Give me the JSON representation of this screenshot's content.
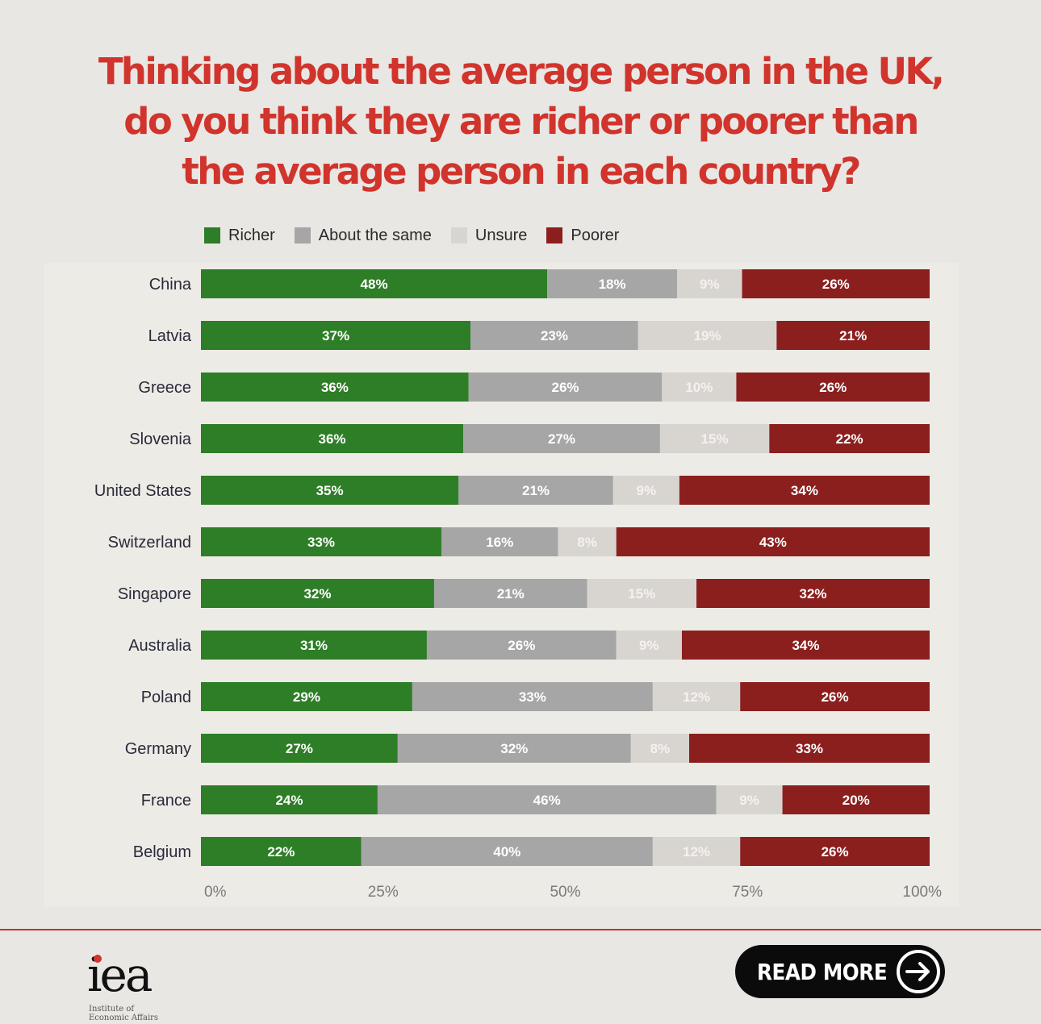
{
  "title_lines": [
    "Thinking about the average person in the UK,",
    "do you think they are richer or poorer than",
    "the average person in each country?"
  ],
  "colors": {
    "richer": "#2e7d27",
    "same": "#a6a6a6",
    "unsure": "#d8d5d1",
    "poorer": "#8b1f1e",
    "title": "#d0342c"
  },
  "chart_data": {
    "type": "bar",
    "orientation": "horizontal",
    "stacked": true,
    "normalized": true,
    "categories": [
      "China",
      "Latvia",
      "Greece",
      "Slovenia",
      "United States",
      "Switzerland",
      "Singapore",
      "Australia",
      "Poland",
      "Germany",
      "France",
      "Belgium"
    ],
    "series": [
      {
        "name": "Richer",
        "color": "#2e7d27",
        "values": [
          48,
          37,
          36,
          36,
          35,
          33,
          32,
          31,
          29,
          27,
          24,
          22
        ]
      },
      {
        "name": "About the same",
        "color": "#a6a6a6",
        "values": [
          18,
          23,
          26,
          27,
          21,
          16,
          21,
          26,
          33,
          32,
          46,
          40
        ]
      },
      {
        "name": "Unsure",
        "color": "#d8d5d1",
        "values": [
          9,
          19,
          10,
          15,
          9,
          8,
          15,
          9,
          12,
          8,
          9,
          12
        ]
      },
      {
        "name": "Poorer",
        "color": "#8b1f1e",
        "values": [
          26,
          21,
          26,
          22,
          34,
          43,
          32,
          34,
          26,
          33,
          20,
          26
        ]
      }
    ],
    "x_ticks": [
      "0%",
      "25%",
      "50%",
      "75%",
      "100%"
    ],
    "xlim": [
      0,
      100
    ],
    "legend_position": "top",
    "grid": false
  },
  "footer": {
    "logo_text": "iea",
    "logo_sub": [
      "Institute of",
      "Economic Affairs"
    ],
    "read_more": "READ MORE"
  }
}
